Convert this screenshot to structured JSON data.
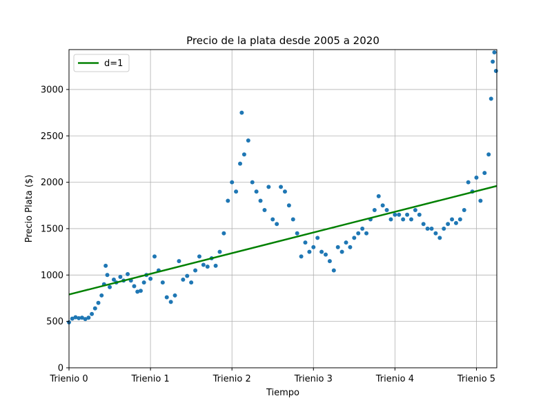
{
  "chart_data": {
    "type": "scatter",
    "title": "Precio de la plata desde 2005 a 2020",
    "xlabel": "Tiempo",
    "ylabel": "Precio Plata ($)",
    "xlim": [
      0,
      5.25
    ],
    "ylim": [
      0,
      3430
    ],
    "grid": true,
    "legend": {
      "placement": "top-left",
      "entries": [
        "d=1"
      ]
    },
    "x_ticks": [
      {
        "value": 0,
        "label": "Trienio 0"
      },
      {
        "value": 1,
        "label": "Trienio 1"
      },
      {
        "value": 2,
        "label": "Trienio 2"
      },
      {
        "value": 3,
        "label": "Trienio 3"
      },
      {
        "value": 4,
        "label": "Trienio 4"
      },
      {
        "value": 5,
        "label": "Trienio 5"
      }
    ],
    "y_ticks": [
      0,
      500,
      1000,
      1500,
      2000,
      2500,
      3000
    ],
    "colors": {
      "scatter": "#1f77b4",
      "fit": "#008000",
      "grid": "#b0b0b0"
    },
    "series": [
      {
        "kind": "scatter",
        "points": [
          [
            0.0,
            490
          ],
          [
            0.04,
            530
          ],
          [
            0.08,
            545
          ],
          [
            0.12,
            535
          ],
          [
            0.16,
            540
          ],
          [
            0.2,
            525
          ],
          [
            0.24,
            540
          ],
          [
            0.28,
            580
          ],
          [
            0.32,
            640
          ],
          [
            0.36,
            700
          ],
          [
            0.4,
            780
          ],
          [
            0.43,
            900
          ],
          [
            0.45,
            1100
          ],
          [
            0.47,
            1000
          ],
          [
            0.5,
            870
          ],
          [
            0.55,
            950
          ],
          [
            0.58,
            920
          ],
          [
            0.63,
            980
          ],
          [
            0.67,
            940
          ],
          [
            0.72,
            1010
          ],
          [
            0.76,
            940
          ],
          [
            0.8,
            880
          ],
          [
            0.84,
            820
          ],
          [
            0.88,
            830
          ],
          [
            0.92,
            920
          ],
          [
            0.95,
            1000
          ],
          [
            1.0,
            960
          ],
          [
            1.05,
            1200
          ],
          [
            1.1,
            1050
          ],
          [
            1.15,
            920
          ],
          [
            1.2,
            760
          ],
          [
            1.25,
            710
          ],
          [
            1.3,
            780
          ],
          [
            1.35,
            1150
          ],
          [
            1.4,
            950
          ],
          [
            1.45,
            990
          ],
          [
            1.5,
            920
          ],
          [
            1.55,
            1050
          ],
          [
            1.6,
            1200
          ],
          [
            1.65,
            1110
          ],
          [
            1.7,
            1090
          ],
          [
            1.75,
            1180
          ],
          [
            1.8,
            1100
          ],
          [
            1.85,
            1250
          ],
          [
            1.9,
            1450
          ],
          [
            1.95,
            1800
          ],
          [
            2.0,
            2000
          ],
          [
            2.05,
            1900
          ],
          [
            2.1,
            2200
          ],
          [
            2.12,
            2750
          ],
          [
            2.15,
            2300
          ],
          [
            2.2,
            2450
          ],
          [
            2.25,
            2000
          ],
          [
            2.3,
            1900
          ],
          [
            2.35,
            1800
          ],
          [
            2.4,
            1700
          ],
          [
            2.45,
            1950
          ],
          [
            2.5,
            1600
          ],
          [
            2.55,
            1550
          ],
          [
            2.6,
            1950
          ],
          [
            2.65,
            1900
          ],
          [
            2.7,
            1750
          ],
          [
            2.75,
            1600
          ],
          [
            2.8,
            1450
          ],
          [
            2.85,
            1200
          ],
          [
            2.9,
            1350
          ],
          [
            2.95,
            1250
          ],
          [
            3.0,
            1300
          ],
          [
            3.05,
            1400
          ],
          [
            3.1,
            1250
          ],
          [
            3.15,
            1220
          ],
          [
            3.2,
            1150
          ],
          [
            3.25,
            1050
          ],
          [
            3.3,
            1300
          ],
          [
            3.35,
            1250
          ],
          [
            3.4,
            1350
          ],
          [
            3.45,
            1300
          ],
          [
            3.5,
            1400
          ],
          [
            3.55,
            1450
          ],
          [
            3.6,
            1500
          ],
          [
            3.65,
            1450
          ],
          [
            3.7,
            1600
          ],
          [
            3.75,
            1700
          ],
          [
            3.8,
            1850
          ],
          [
            3.85,
            1750
          ],
          [
            3.9,
            1700
          ],
          [
            3.95,
            1600
          ],
          [
            4.0,
            1650
          ],
          [
            4.05,
            1650
          ],
          [
            4.1,
            1600
          ],
          [
            4.15,
            1650
          ],
          [
            4.2,
            1600
          ],
          [
            4.25,
            1700
          ],
          [
            4.3,
            1650
          ],
          [
            4.35,
            1550
          ],
          [
            4.4,
            1500
          ],
          [
            4.45,
            1500
          ],
          [
            4.5,
            1450
          ],
          [
            4.55,
            1400
          ],
          [
            4.6,
            1500
          ],
          [
            4.65,
            1550
          ],
          [
            4.7,
            1600
          ],
          [
            4.75,
            1560
          ],
          [
            4.8,
            1600
          ],
          [
            4.85,
            1700
          ],
          [
            4.9,
            2000
          ],
          [
            4.95,
            1900
          ],
          [
            5.0,
            2050
          ],
          [
            5.05,
            1800
          ],
          [
            5.1,
            2100
          ],
          [
            5.15,
            2300
          ],
          [
            5.18,
            2900
          ],
          [
            5.2,
            3300
          ],
          [
            5.22,
            3400
          ],
          [
            5.24,
            3200
          ]
        ]
      },
      {
        "kind": "line",
        "name": "d=1",
        "points": [
          [
            0,
            790
          ],
          [
            5.25,
            1960
          ]
        ]
      }
    ]
  }
}
